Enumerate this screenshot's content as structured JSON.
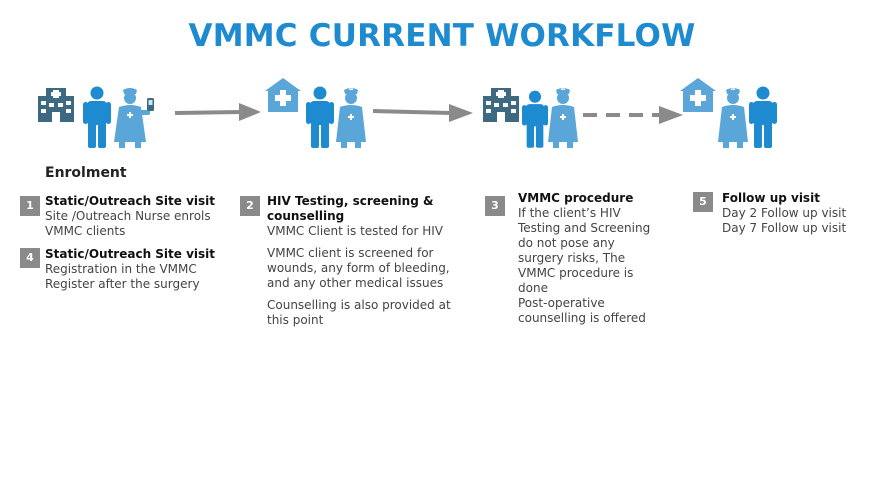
{
  "title": "VMMC CURRENT WORKFLOW",
  "enrolment_heading": "Enrolment",
  "colors": {
    "title": "#1e8ad0",
    "person_blue": "#1e8ad0",
    "nurse_light": "#5aa6d8",
    "building": "#3d6a82",
    "arrow": "#8a8a8a",
    "badge": "#8a8a8a"
  },
  "icons": {
    "group1": [
      "hospital-building-icon",
      "man-icon",
      "nurse-with-phone-icon"
    ],
    "group2": [
      "clinic-house-icon",
      "man-icon",
      "nurse-icon"
    ],
    "group3": [
      "hospital-building-icon",
      "man-icon",
      "nurse-icon"
    ],
    "group4": [
      "clinic-house-icon",
      "nurse-icon",
      "man-icon"
    ]
  },
  "steps": [
    {
      "number": "1",
      "title": "Static/Outreach Site visit",
      "lines": [
        "Site /Outreach Nurse enrols",
        "VMMC clients"
      ]
    },
    {
      "number": "4",
      "title": "Static/Outreach Site visit",
      "lines": [
        "Registration in the VMMC",
        "Register after the surgery"
      ]
    },
    {
      "number": "2",
      "title": "HIV Testing, screening &",
      "title2": "counselling",
      "lines": [
        "VMMC Client is tested for HIV"
      ],
      "para2": [
        "VMMC client is screened for",
        "wounds, any form of bleeding,",
        "and any other medical issues"
      ],
      "para3": [
        "Counselling is also provided at",
        "this point"
      ]
    },
    {
      "number": "3",
      "title": "VMMC procedure",
      "lines": [
        "If the client’s HIV",
        "Testing and Screening",
        "do not pose any",
        "surgery risks, The",
        "VMMC procedure is",
        "done",
        "Post-operative",
        "counselling is offered"
      ]
    },
    {
      "number": "5",
      "title": "Follow up visit",
      "lines": [
        "Day 2 Follow up visit",
        "Day 7 Follow up visit"
      ]
    }
  ]
}
